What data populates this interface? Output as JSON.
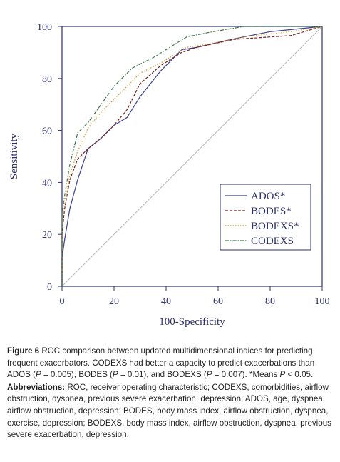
{
  "chart_data": {
    "type": "line",
    "xlabel": "100-Specificity",
    "ylabel": "Sensitivity",
    "xlim": [
      0,
      100
    ],
    "ylim": [
      0,
      100
    ],
    "xticks": [
      0,
      20,
      40,
      60,
      80,
      100
    ],
    "yticks": [
      0,
      20,
      40,
      60,
      80,
      100
    ],
    "grid": false,
    "legend_position": "bottom-right",
    "diagonal_reference": true,
    "series": [
      {
        "name": "ADOS*",
        "color": "#3a3f8f",
        "dash": "solid",
        "points": [
          [
            0,
            0
          ],
          [
            0,
            11
          ],
          [
            1,
            18
          ],
          [
            3,
            30
          ],
          [
            6,
            41
          ],
          [
            10,
            53
          ],
          [
            15,
            57
          ],
          [
            20,
            62
          ],
          [
            25,
            65
          ],
          [
            30,
            73
          ],
          [
            38,
            83
          ],
          [
            46,
            91
          ],
          [
            52,
            92
          ],
          [
            65,
            95
          ],
          [
            80,
            98
          ],
          [
            90,
            99
          ],
          [
            100,
            100
          ]
        ]
      },
      {
        "name": "BODES*",
        "color": "#7a1f1f",
        "dash": "dashed",
        "points": [
          [
            0,
            0
          ],
          [
            0,
            20
          ],
          [
            1,
            30
          ],
          [
            3,
            41
          ],
          [
            6,
            49
          ],
          [
            10,
            53
          ],
          [
            15,
            57
          ],
          [
            20,
            62
          ],
          [
            25,
            68
          ],
          [
            30,
            78
          ],
          [
            38,
            85
          ],
          [
            46,
            90
          ],
          [
            52,
            92
          ],
          [
            66,
            95
          ],
          [
            88,
            96.5
          ],
          [
            100,
            100
          ]
        ]
      },
      {
        "name": "BODEXS*",
        "color": "#c99a2e",
        "dash": "dotted",
        "points": [
          [
            0,
            0
          ],
          [
            0,
            25
          ],
          [
            1,
            33
          ],
          [
            3,
            43
          ],
          [
            6,
            52
          ],
          [
            10,
            61
          ],
          [
            15,
            67
          ],
          [
            20,
            72
          ],
          [
            25,
            77
          ],
          [
            30,
            82
          ],
          [
            38,
            86
          ],
          [
            48,
            92
          ],
          [
            55,
            93
          ],
          [
            70,
            96
          ],
          [
            88,
            98
          ],
          [
            100,
            100
          ]
        ]
      },
      {
        "name": "CODEXS",
        "color": "#3f7a4a",
        "dash": "dashdot",
        "points": [
          [
            0,
            0
          ],
          [
            0,
            28
          ],
          [
            1,
            35
          ],
          [
            3,
            47
          ],
          [
            6,
            59
          ],
          [
            10,
            63
          ],
          [
            15,
            70
          ],
          [
            20,
            77
          ],
          [
            27,
            84
          ],
          [
            35,
            88
          ],
          [
            48,
            96
          ],
          [
            58,
            98
          ],
          [
            70,
            100
          ],
          [
            100,
            100
          ]
        ]
      }
    ]
  },
  "caption": {
    "figure_label": "Figure 6",
    "text_1": " ROC comparison between updated multidimensional indices for predicting frequent exacerbators. CODEXS had better a capacity to predict exacerbations than ADOS (",
    "p_1": "P",
    "text_2": " = 0.005), BODES (",
    "p_2": "P",
    "text_3": " = 0.01), and BODEXS (",
    "p_3": "P",
    "text_4": " = 0.007). *Means ",
    "p_4": "P",
    "text_5": " < 0.05.",
    "abbr_label": "Abbreviations:",
    "abbr_text": " ROC, receiver operating characteristic; CODEXS, comorbidities, airflow obstruction, dyspnea, previous severe exacerbation, depression; ADOS, age, dyspnea, airflow obstruction, depression; BODES, body mass index, airflow obstruction, dyspnea, exercise, depression; BODEXS, body mass index, airflow obstruction, dyspnea, previous severe exacerbation, depression."
  }
}
